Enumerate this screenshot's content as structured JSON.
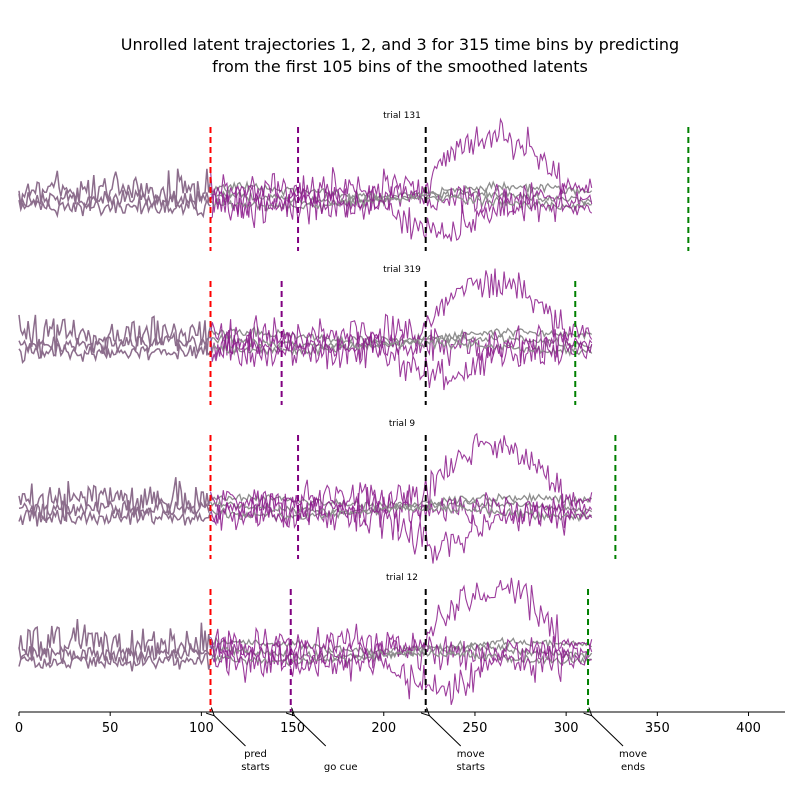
{
  "title_line1": "Unrolled latent trajectories 1, 2, and 3 for 315 time bins by predicting",
  "title_line2": "from the first 105 bins of the smoothed latents",
  "chart_data": {
    "type": "line",
    "x_range": [
      0,
      420
    ],
    "x_ticks": [
      0,
      50,
      100,
      150,
      200,
      250,
      300,
      350,
      400
    ],
    "n_bins": 315,
    "observed_bins": 105,
    "colors": {
      "smoothed": "#8c6d8c",
      "predicted": "#8b1a8b",
      "actual_gray": "#8e8e8e",
      "pred_start_line": "#ff0000",
      "go_cue_line": "#800080",
      "move_start_line": "#000000",
      "move_end_line": "#008000"
    },
    "trials": [
      {
        "label": "trial 131",
        "pred_start": 105,
        "go_cue": 153,
        "move_start": 223,
        "move_end": 367
      },
      {
        "label": "trial 319",
        "pred_start": 105,
        "go_cue": 144,
        "move_start": 223,
        "move_end": 305
      },
      {
        "label": "trial 9",
        "pred_start": 105,
        "go_cue": 153,
        "move_start": 223,
        "move_end": 327
      },
      {
        "label": "trial 12",
        "pred_start": 105,
        "go_cue": 149,
        "move_start": 223,
        "move_end": 312
      }
    ],
    "annotations": [
      {
        "label": "pred\nstarts",
        "x": 105
      },
      {
        "label": "go cue",
        "x": 149
      },
      {
        "label": "move\nstarts",
        "x": 223
      },
      {
        "label": "move\nends",
        "x": 312
      }
    ]
  }
}
